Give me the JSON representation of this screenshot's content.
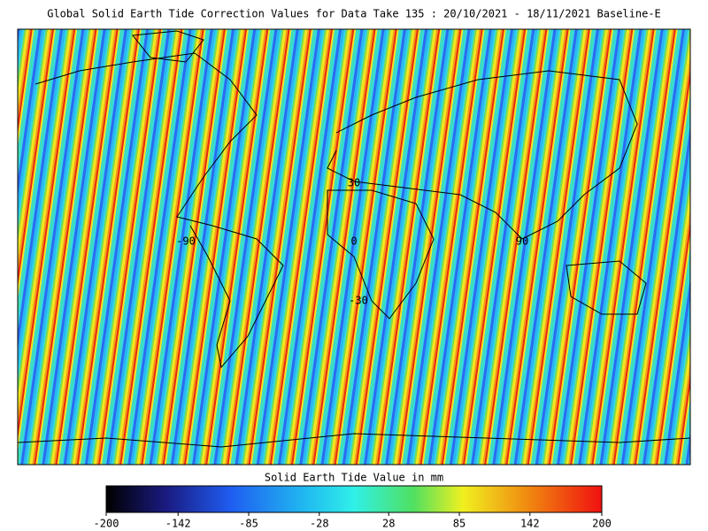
{
  "title": "Global Solid Earth Tide Correction Values for Data Take 135 : 20/10/2021 - 18/11/2021 Baseline-E",
  "grid_labels": [
    "-90",
    "0",
    "90",
    "30",
    "-30"
  ],
  "colorbar": {
    "label": "Solid Earth Tide Value in mm",
    "lim": [
      -200,
      200
    ],
    "ticks": [
      -200,
      -142,
      -85,
      -28,
      28,
      85,
      142,
      200
    ]
  }
}
